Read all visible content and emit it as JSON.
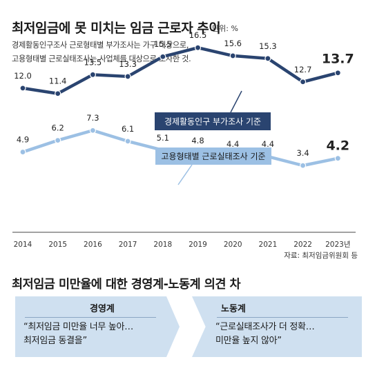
{
  "title": "최저임금에 못 미치는 임금 근로자 추이",
  "unit": "단위: %",
  "notes": [
    "경제활동인구조사 근로형태별 부가조사는 가구 대상으로,",
    "고용형태별 근로실태조사는 사업체를 대상으로 조사한 것."
  ],
  "source": "자료: 최저임금위원회 등",
  "chart_data": {
    "type": "line",
    "x": [
      "2014",
      "2015",
      "2016",
      "2017",
      "2018",
      "2019",
      "2020",
      "2021",
      "2022",
      "2023년"
    ],
    "series": [
      {
        "name": "경제활동인구 부가조사 기준",
        "color": "#2a4470",
        "values": [
          12.0,
          11.4,
          13.5,
          13.3,
          15.5,
          16.5,
          15.6,
          15.3,
          12.7,
          13.7
        ],
        "labels": [
          "12.0",
          "11.4",
          "13.5",
          "13.3",
          "15.5",
          "16.5",
          "15.6",
          "15.3",
          "12.7",
          "13.7"
        ]
      },
      {
        "name": "고용형태별 근로실태조사 기준",
        "color": "#9cc0e4",
        "values": [
          4.9,
          6.2,
          7.3,
          6.1,
          5.1,
          4.8,
          4.4,
          4.4,
          3.4,
          4.2
        ],
        "labels": [
          "4.9",
          "6.2",
          "7.3",
          "6.1",
          "5.1",
          "4.8",
          "4.4",
          "4.4",
          "3.4",
          "4.2"
        ]
      }
    ],
    "grid": false,
    "xlabel": "",
    "ylabel": ""
  },
  "opinion": {
    "title": "최저임금 미만율에 대한 경영계-노동계 의견 차",
    "left": {
      "head": "경영계",
      "lines": [
        "“최저임금 미만율 너무 높아…",
        "최저임금 동결을”"
      ]
    },
    "right": {
      "head": "노동계",
      "lines": [
        "“근로실태조사가 더 정확…",
        "미만율 높지 않아”"
      ]
    }
  }
}
